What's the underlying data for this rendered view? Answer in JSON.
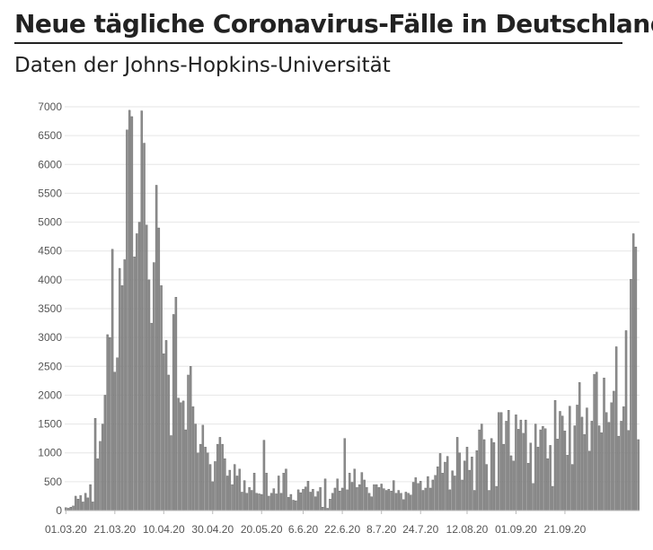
{
  "header": {
    "title": "Neue tägliche Coronavirus-Fälle in Deutschland",
    "subtitle": "Daten der Johns-Hopkins-Universität"
  },
  "colors": {
    "bar": "#8c8c8c",
    "bar_edge": "#555555",
    "grid": "#e6e6e6",
    "axis": "#bbbbbb"
  },
  "chart_data": {
    "type": "bar",
    "title": "Neue tägliche Coronavirus-Fälle in Deutschland",
    "subtitle": "Daten der Johns-Hopkins-Universität",
    "xlabel": "",
    "ylabel": "",
    "ylim": [
      0,
      7000
    ],
    "yticks": [
      0,
      500,
      1000,
      1500,
      2000,
      2500,
      3000,
      3500,
      4000,
      4500,
      5000,
      5500,
      6000,
      6500,
      7000
    ],
    "grid": true,
    "first_date": "01.03.20",
    "xtick_labels": [
      {
        "index": 0,
        "label": "01.03.20"
      },
      {
        "index": 20,
        "label": "21.03.20"
      },
      {
        "index": 40,
        "label": "10.04.20"
      },
      {
        "index": 60,
        "label": "30.04.20"
      },
      {
        "index": 80,
        "label": "20.05.20"
      },
      {
        "index": 97,
        "label": "6.6.20"
      },
      {
        "index": 113,
        "label": "22.6.20"
      },
      {
        "index": 129,
        "label": "8.7.20"
      },
      {
        "index": 145,
        "label": "24.7.20"
      },
      {
        "index": 164,
        "label": "12.08.20"
      },
      {
        "index": 184,
        "label": "01.09.20"
      },
      {
        "index": 204,
        "label": "21.09.20"
      }
    ],
    "values": [
      50,
      40,
      60,
      80,
      250,
      200,
      260,
      150,
      300,
      220,
      450,
      150,
      1600,
      900,
      1200,
      1500,
      2000,
      3050,
      3000,
      4530,
      2400,
      2650,
      4200,
      3900,
      4350,
      6600,
      6940,
      6830,
      4400,
      4800,
      5000,
      6930,
      6370,
      4950,
      4000,
      3250,
      4300,
      5640,
      4900,
      3900,
      2720,
      2950,
      2350,
      1300,
      3400,
      3700,
      1950,
      1870,
      1900,
      1400,
      2350,
      2500,
      1800,
      1500,
      1000,
      1150,
      1480,
      1100,
      1000,
      800,
      500,
      850,
      1150,
      1270,
      1150,
      900,
      600,
      700,
      450,
      800,
      600,
      720,
      320,
      520,
      300,
      400,
      350,
      650,
      300,
      290,
      280,
      1220,
      650,
      250,
      300,
      380,
      290,
      600,
      300,
      650,
      720,
      230,
      280,
      180,
      170,
      360,
      310,
      370,
      410,
      510,
      320,
      370,
      240,
      330,
      400,
      60,
      550,
      40,
      200,
      300,
      390,
      550,
      340,
      390,
      1250,
      360,
      650,
      490,
      720,
      400,
      450,
      660,
      530,
      400,
      300,
      240,
      450,
      450,
      400,
      460,
      380,
      350,
      370,
      340,
      520,
      300,
      350,
      300,
      190,
      320,
      300,
      270,
      490,
      570,
      470,
      510,
      350,
      390,
      590,
      390,
      530,
      610,
      760,
      990,
      650,
      840,
      940,
      360,
      690,
      600,
      1270,
      1000,
      530,
      860,
      1100,
      700,
      930,
      350,
      1040,
      1400,
      1500,
      1230,
      800,
      350,
      1250,
      1180,
      420,
      1700,
      1700,
      1150,
      1550,
      1740,
      950,
      860,
      1660,
      1410,
      1570,
      1340,
      1570,
      820,
      1170,
      470,
      1500,
      1100,
      1400,
      1460,
      1420,
      900,
      1130,
      420,
      1910,
      1240,
      1720,
      1640,
      1380,
      960,
      1810,
      800,
      1470,
      1830,
      2220,
      1620,
      1320,
      1780,
      1030,
      1550,
      2360,
      2400,
      1470,
      1350,
      2300,
      1700,
      1530,
      1870,
      2070,
      2840,
      1290,
      1550,
      1800,
      3120,
      1390,
      4010,
      4800,
      4570,
      1230
    ]
  }
}
